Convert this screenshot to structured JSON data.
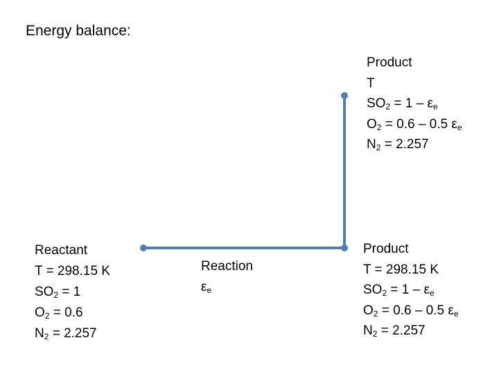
{
  "title": "Energy balance:",
  "blocks": [
    {
      "lines": [
        [
          "Reactant"
        ],
        [
          "T = 298.15 K"
        ],
        [
          "SO",
          {
            "sub": "2"
          },
          " = 1"
        ],
        [
          "O",
          {
            "sub": "2"
          },
          " = 0.6"
        ],
        [
          "N",
          {
            "sub": "2"
          },
          " = 2.257"
        ]
      ]
    },
    {
      "lines": [
        [
          "Reaction"
        ],
        [
          "ε",
          {
            "sub": "e"
          }
        ]
      ]
    },
    {
      "lines": [
        [
          "Product"
        ],
        [
          "T"
        ],
        [
          "SO",
          {
            "sub": "2"
          },
          " = 1 – ε",
          {
            "sub": "e"
          }
        ],
        [
          "O",
          {
            "sub": "2"
          },
          " = 0.6 – 0.5 ε",
          {
            "sub": "e"
          }
        ],
        [
          "N",
          {
            "sub": "2"
          },
          " = 2.257"
        ]
      ]
    },
    {
      "lines": [
        [
          "Product"
        ],
        [
          "T = 298.15 K"
        ],
        [
          "SO",
          {
            "sub": "2"
          },
          " = 1 – ε",
          {
            "sub": "e"
          }
        ],
        [
          "O",
          {
            "sub": "2"
          },
          " = 0.6 – 0.5 ε",
          {
            "sub": "e"
          }
        ],
        [
          "N",
          {
            "sub": "2"
          },
          " = 2.257"
        ]
      ]
    }
  ]
}
